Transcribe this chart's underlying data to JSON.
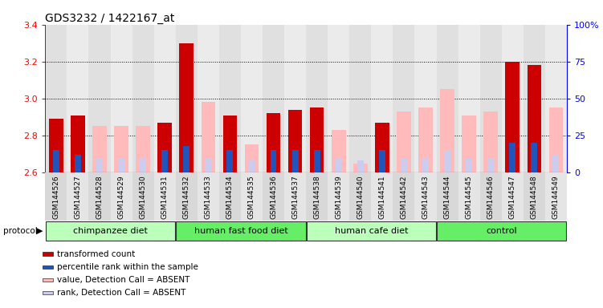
{
  "title": "GDS3232 / 1422167_at",
  "samples": [
    "GSM144526",
    "GSM144527",
    "GSM144528",
    "GSM144529",
    "GSM144530",
    "GSM144531",
    "GSM144532",
    "GSM144533",
    "GSM144534",
    "GSM144535",
    "GSM144536",
    "GSM144537",
    "GSM144538",
    "GSM144539",
    "GSM144540",
    "GSM144541",
    "GSM144542",
    "GSM144543",
    "GSM144544",
    "GSM144545",
    "GSM144546",
    "GSM144547",
    "GSM144548",
    "GSM144549"
  ],
  "red_values": [
    2.89,
    2.91,
    0.0,
    0.0,
    0.0,
    2.87,
    3.3,
    0.0,
    2.91,
    0.0,
    2.92,
    2.94,
    2.95,
    0.0,
    0.0,
    2.87,
    0.0,
    0.0,
    0.0,
    0.0,
    0.0,
    3.2,
    3.18,
    0.0
  ],
  "pink_values": [
    0.0,
    0.0,
    2.85,
    2.85,
    2.85,
    0.0,
    0.0,
    2.98,
    0.0,
    2.75,
    0.0,
    0.0,
    0.0,
    2.83,
    2.65,
    0.0,
    2.93,
    2.95,
    3.05,
    2.91,
    2.93,
    0.0,
    0.0,
    2.95
  ],
  "blue_pct": [
    15,
    12,
    0,
    0,
    0,
    15,
    18,
    15,
    15,
    0,
    15,
    15,
    15,
    0,
    0,
    15,
    0,
    0,
    0,
    0,
    0,
    20,
    20,
    0
  ],
  "lightblue_pct": [
    0,
    0,
    10,
    10,
    10,
    0,
    0,
    10,
    0,
    8,
    0,
    0,
    0,
    10,
    8,
    0,
    10,
    10,
    15,
    10,
    10,
    0,
    0,
    12
  ],
  "groups": [
    {
      "label": "chimpanzee diet",
      "start": 0,
      "end": 5
    },
    {
      "label": "human fast food diet",
      "start": 6,
      "end": 11
    },
    {
      "label": "human cafe diet",
      "start": 12,
      "end": 17
    },
    {
      "label": "control",
      "start": 18,
      "end": 23
    }
  ],
  "group_colors": [
    "#bbffbb",
    "#66ee66",
    "#bbffbb",
    "#66ee66"
  ],
  "ylim": [
    2.6,
    3.4
  ],
  "yticks": [
    2.6,
    2.8,
    3.0,
    3.2,
    3.4
  ],
  "y2ticks_pct": [
    0,
    25,
    50,
    75,
    100
  ],
  "y2tick_labels": [
    "0",
    "25",
    "50",
    "75",
    "100%"
  ],
  "bar_width": 0.65,
  "legend_items": [
    [
      "#cc0000",
      "transformed count"
    ],
    [
      "#2255bb",
      "percentile rank within the sample"
    ],
    [
      "#ffbbbb",
      "value, Detection Call = ABSENT"
    ],
    [
      "#ccccee",
      "rank, Detection Call = ABSENT"
    ]
  ]
}
